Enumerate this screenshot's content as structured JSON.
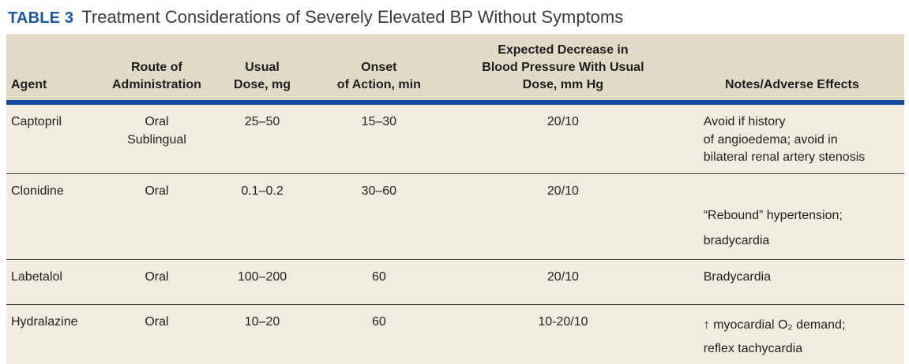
{
  "title": {
    "label": "TABLE 3",
    "text": "Treatment Considerations of Severely Elevated BP Without Symptoms"
  },
  "colors": {
    "accent_blue": "#1c57a8",
    "header_rule_blue": "#134a9e",
    "header_bg": "#e0dac7",
    "row_bg": "#f0ecdf",
    "text": "#231f20"
  },
  "table": {
    "columns": [
      {
        "key": "agent",
        "label": "Agent"
      },
      {
        "key": "route",
        "label": "Route of\nAdministration"
      },
      {
        "key": "dose",
        "label": "Usual\nDose, mg"
      },
      {
        "key": "onset",
        "label": "Onset\nof Action, min"
      },
      {
        "key": "bp",
        "label": "Expected Decrease in\nBlood Pressure With Usual\nDose, mm Hg"
      },
      {
        "key": "notes",
        "label": "Notes/Adverse Effects"
      }
    ],
    "rows": [
      {
        "agent": "Captopril",
        "route": "Oral\nSublingual",
        "dose": "25–50",
        "onset": "15–30",
        "bp": "20/10",
        "notes": "Avoid if history\nof angioedema; avoid in\nbilateral renal artery stenosis"
      },
      {
        "agent": "Clonidine",
        "route": "Oral",
        "dose": "0.1–0.2",
        "onset": "30–60",
        "bp": "20/10",
        "notes": "“Rebound” hypertension;\nbradycardia"
      },
      {
        "agent": "Labetalol",
        "route": "Oral",
        "dose": "100–200",
        "onset": "60",
        "bp": "20/10",
        "notes": "Bradycardia"
      },
      {
        "agent": "Hydralazine",
        "route": "Oral",
        "dose": "10–20",
        "onset": "60",
        "bp": "10-20/10",
        "notes": "↑ myocardial O₂ demand;\nreflex tachycardia"
      }
    ]
  }
}
